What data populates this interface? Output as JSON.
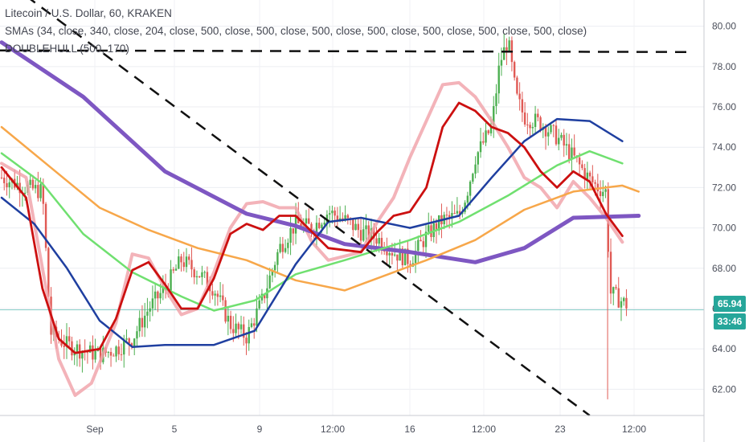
{
  "header": {
    "title_line": "Litecoin / U.S. Dollar, 60, KRAKEN",
    "sma_line": "SMAs (34, close, 340, close, 204, close, 500, close, 500, close, 500, close, 500, close, 500, close, 500, close, 500, close)",
    "hull_line": "DOUBLEHULL (500, 170)"
  },
  "price_axis": {
    "ticks": [
      "80.00",
      "78.00",
      "76.00",
      "74.00",
      "72.00",
      "70.00",
      "68.00",
      "66.00",
      "64.00",
      "62.00"
    ],
    "current_price": "65.94",
    "countdown": "33:46"
  },
  "time_axis": {
    "labels": [
      "Sep",
      "5",
      "9",
      "12:00",
      "16",
      "12:00",
      "23",
      "12:00"
    ]
  },
  "colors": {
    "up": "#4caf50",
    "down": "#e05a55",
    "price_badge": "#26a69a",
    "countdown_badge": "#26a69a",
    "sma_purple": "#7e57c2",
    "sma_blue": "#1f3fa0",
    "sma_green": "#70e070",
    "sma_orange": "#f7a74a",
    "hull_red": "#cc1010",
    "hull_pink": "#f0a0a8"
  },
  "chart_data": {
    "type": "line",
    "title": "Litecoin / U.S. Dollar, 60, KRAKEN",
    "x_labels": [
      "Sep",
      "5",
      "9",
      "12:00",
      "16",
      "12:00",
      "23",
      "12:00"
    ],
    "ylim": [
      60.7,
      81.3
    ],
    "current_price": 65.94,
    "price_path": [
      [
        0,
        72.5
      ],
      [
        3,
        72.0
      ],
      [
        5,
        71.8
      ],
      [
        6,
        64.8
      ],
      [
        8,
        64.2
      ],
      [
        10,
        63.9
      ],
      [
        12,
        63.7
      ],
      [
        14,
        64.0
      ],
      [
        16,
        64.5
      ],
      [
        18,
        66.0
      ],
      [
        20,
        67.0
      ],
      [
        22,
        68.4
      ],
      [
        24,
        67.8
      ],
      [
        26,
        67.0
      ],
      [
        28,
        65.2
      ],
      [
        30,
        64.6
      ],
      [
        32,
        66.5
      ],
      [
        34,
        69.0
      ],
      [
        36,
        70.2
      ],
      [
        38,
        70.0
      ],
      [
        40,
        70.8
      ],
      [
        42,
        70.4
      ],
      [
        44,
        69.8
      ],
      [
        46,
        69.5
      ],
      [
        48,
        68.8
      ],
      [
        50,
        68.4
      ],
      [
        52,
        69.6
      ],
      [
        54,
        70.4
      ],
      [
        56,
        70.6
      ],
      [
        57,
        71.8
      ],
      [
        58,
        73.5
      ],
      [
        60,
        75.0
      ],
      [
        61,
        78.2
      ],
      [
        62,
        79.3
      ],
      [
        63,
        76.5
      ],
      [
        64,
        75.5
      ],
      [
        66,
        75.2
      ],
      [
        68,
        74.5
      ],
      [
        70,
        73.5
      ],
      [
        72,
        72.4
      ],
      [
        73,
        72.0
      ],
      [
        74,
        71.8
      ],
      [
        74.5,
        66.8
      ],
      [
        75.5,
        66.5
      ],
      [
        76.5,
        66.2
      ]
    ],
    "series": [
      {
        "name": "SMA 500",
        "color": "#7e57c2",
        "values": [
          [
            0,
            79.2
          ],
          [
            10,
            76.5
          ],
          [
            20,
            72.8
          ],
          [
            30,
            70.7
          ],
          [
            36,
            70.1
          ],
          [
            42,
            69.2
          ],
          [
            50,
            68.8
          ],
          [
            58,
            68.3
          ],
          [
            64,
            69.0
          ],
          [
            70,
            70.5
          ],
          [
            78,
            70.6
          ]
        ]
      },
      {
        "name": "SMA 340",
        "color": "#1f3fa0",
        "values": [
          [
            0,
            71.5
          ],
          [
            4,
            70.2
          ],
          [
            8,
            68.0
          ],
          [
            12,
            65.4
          ],
          [
            16,
            64.1
          ],
          [
            20,
            64.2
          ],
          [
            26,
            64.2
          ],
          [
            31,
            64.9
          ],
          [
            36,
            68.2
          ],
          [
            40,
            70.3
          ],
          [
            44,
            70.5
          ],
          [
            50,
            70.0
          ],
          [
            56,
            70.6
          ],
          [
            60,
            72.5
          ],
          [
            64,
            74.3
          ],
          [
            68,
            75.4
          ],
          [
            72,
            75.3
          ],
          [
            76,
            74.3
          ]
        ]
      },
      {
        "name": "SMA 204",
        "color": "#70e070",
        "values": [
          [
            0,
            73.7
          ],
          [
            5,
            72.2
          ],
          [
            10,
            69.7
          ],
          [
            16,
            67.8
          ],
          [
            22,
            66.6
          ],
          [
            26,
            65.9
          ],
          [
            31,
            66.4
          ],
          [
            36,
            67.7
          ],
          [
            42,
            68.4
          ],
          [
            50,
            69.4
          ],
          [
            56,
            70.3
          ],
          [
            62,
            71.6
          ],
          [
            68,
            73.1
          ],
          [
            72,
            73.8
          ],
          [
            76,
            73.2
          ]
        ]
      },
      {
        "name": "SMA 34",
        "color": "#f7a74a",
        "values": [
          [
            0,
            75.0
          ],
          [
            6,
            73.0
          ],
          [
            12,
            71.0
          ],
          [
            18,
            69.9
          ],
          [
            24,
            69.0
          ],
          [
            30,
            68.4
          ],
          [
            36,
            67.4
          ],
          [
            42,
            66.9
          ],
          [
            48,
            67.8
          ],
          [
            52,
            68.4
          ],
          [
            58,
            69.4
          ],
          [
            64,
            70.9
          ],
          [
            70,
            71.8
          ],
          [
            76,
            72.1
          ],
          [
            78,
            71.8
          ]
        ]
      },
      {
        "name": "DOUBLEHULL (500, 170)",
        "color": "#cc1010",
        "values": [
          [
            0,
            73.0
          ],
          [
            3,
            71.5
          ],
          [
            5,
            67.0
          ],
          [
            7,
            64.5
          ],
          [
            9,
            63.8
          ],
          [
            12,
            64.0
          ],
          [
            14,
            65.5
          ],
          [
            16,
            67.9
          ],
          [
            18,
            68.3
          ],
          [
            20,
            67.2
          ],
          [
            22,
            66.0
          ],
          [
            24,
            66.0
          ],
          [
            26,
            67.5
          ],
          [
            28,
            69.7
          ],
          [
            30,
            70.2
          ],
          [
            32,
            69.9
          ],
          [
            34,
            70.6
          ],
          [
            36,
            70.6
          ],
          [
            38,
            69.8
          ],
          [
            40,
            69.0
          ],
          [
            44,
            68.8
          ],
          [
            46,
            69.8
          ],
          [
            48,
            70.6
          ],
          [
            50,
            70.8
          ],
          [
            52,
            72.0
          ],
          [
            54,
            75.0
          ],
          [
            56,
            76.2
          ],
          [
            58,
            75.8
          ],
          [
            60,
            75.0
          ],
          [
            62,
            74.7
          ],
          [
            64,
            74.0
          ],
          [
            66,
            72.8
          ],
          [
            68,
            72.0
          ],
          [
            70,
            72.8
          ],
          [
            72,
            72.3
          ],
          [
            74,
            70.7
          ],
          [
            76,
            69.6
          ]
        ]
      },
      {
        "name": "DOUBLEHULL (500, 170)",
        "color": "#f0a0a8",
        "values": [
          [
            0,
            73.2
          ],
          [
            3,
            72.5
          ],
          [
            5,
            68.0
          ],
          [
            7,
            63.5
          ],
          [
            9,
            61.7
          ],
          [
            11,
            62.3
          ],
          [
            14,
            65.3
          ],
          [
            16,
            68.7
          ],
          [
            18,
            68.5
          ],
          [
            20,
            67.0
          ],
          [
            22,
            65.7
          ],
          [
            24,
            66.0
          ],
          [
            26,
            67.8
          ],
          [
            28,
            70.0
          ],
          [
            30,
            71.2
          ],
          [
            32,
            71.3
          ],
          [
            34,
            71.0
          ],
          [
            36,
            71.0
          ],
          [
            38,
            69.3
          ],
          [
            40,
            68.4
          ],
          [
            44,
            68.8
          ],
          [
            46,
            70.3
          ],
          [
            48,
            71.5
          ],
          [
            50,
            73.5
          ],
          [
            52,
            75.3
          ],
          [
            54,
            77.1
          ],
          [
            56,
            77.2
          ],
          [
            58,
            76.5
          ],
          [
            60,
            75.3
          ],
          [
            62,
            74.0
          ],
          [
            64,
            72.5
          ],
          [
            66,
            72.0
          ],
          [
            68,
            71.0
          ],
          [
            70,
            72.3
          ],
          [
            72,
            71.5
          ],
          [
            74,
            70.5
          ],
          [
            76,
            69.3
          ]
        ]
      }
    ],
    "annotations": {
      "horizontal_dashed_level": 78.8,
      "descending_dashed_line": [
        [
          3,
          81.5
        ],
        [
          72,
          60.7
        ]
      ]
    }
  }
}
